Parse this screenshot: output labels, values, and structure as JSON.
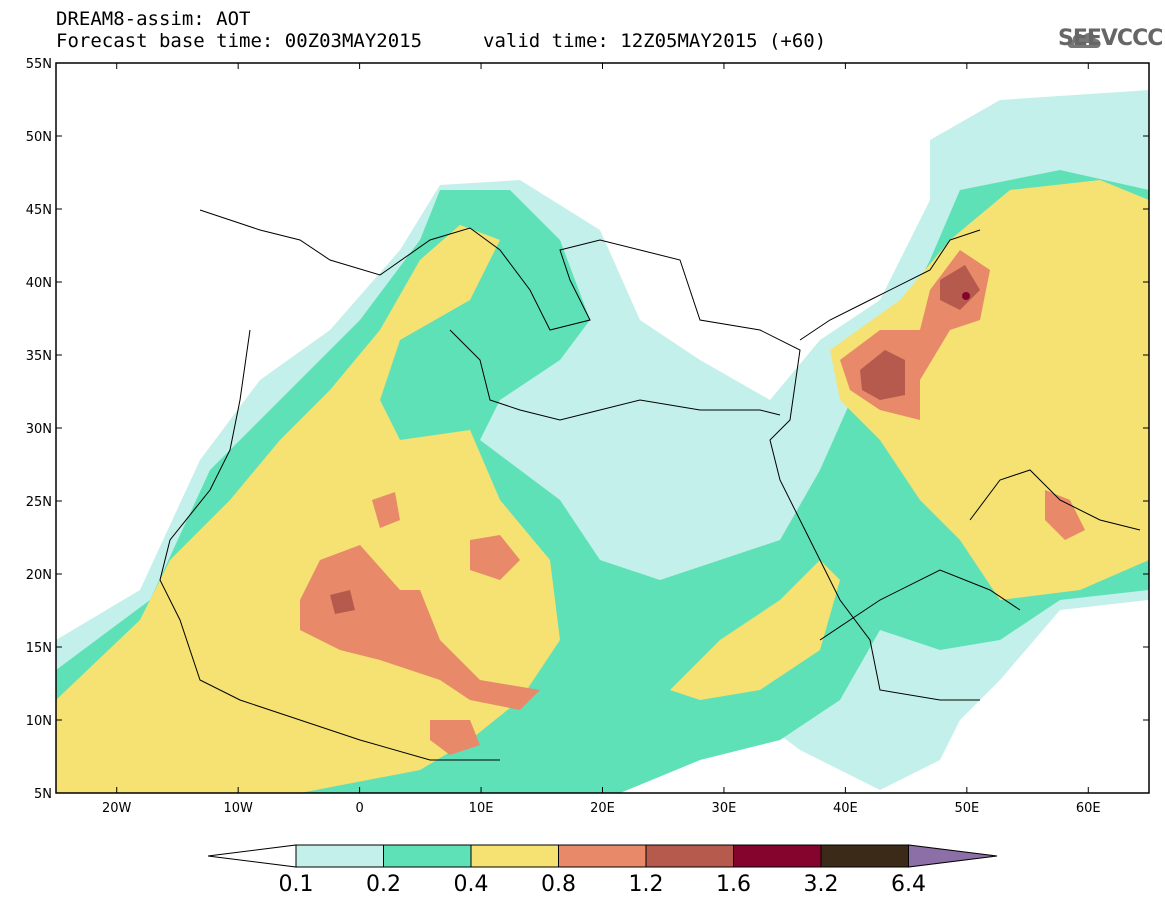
{
  "header": {
    "title": "DREAM8-assim: AOT",
    "base_time": "Forecast base time: 00Z03MAY2015",
    "valid_time": "valid time: 12Z05MAY2015 (+60)",
    "logo_text": "SEEVCCC"
  },
  "map": {
    "lon_range": [
      -25,
      65
    ],
    "lat_range": [
      5,
      55
    ],
    "lon_ticks": [
      "20W",
      "10W",
      "0",
      "10E",
      "20E",
      "30E",
      "40E",
      "50E",
      "60E"
    ],
    "lat_ticks": [
      "55N",
      "50N",
      "45N",
      "40N",
      "35N",
      "30N",
      "25N",
      "20N",
      "15N",
      "10N",
      "5N"
    ]
  },
  "colorbar": {
    "labels": [
      "0.1",
      "0.2",
      "0.4",
      "0.8",
      "1.2",
      "1.6",
      "3.2",
      "6.4"
    ],
    "colors": [
      "#ffffff",
      "#c3f0ea",
      "#5fe1b8",
      "#f5e273",
      "#e8896a",
      "#b55a4c",
      "#84042e",
      "#3c2a18",
      "#8c6fa6"
    ]
  }
}
